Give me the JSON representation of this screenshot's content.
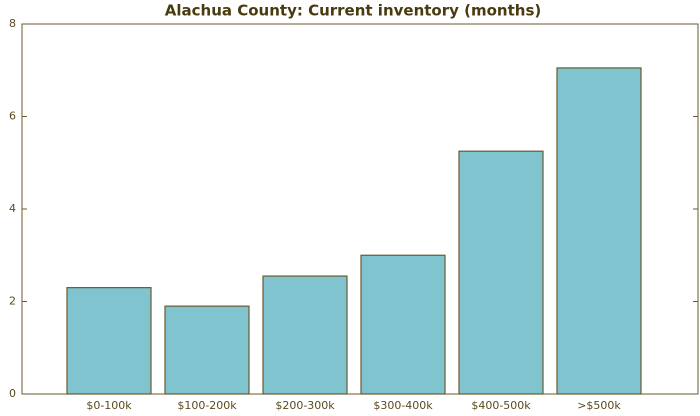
{
  "chart_data": {
    "type": "bar",
    "title": "Alachua County: Current inventory (months)",
    "categories": [
      "$0-100k",
      "$100-200k",
      "$200-300k",
      "$300-400k",
      "$400-500k",
      ">$500k"
    ],
    "values": [
      2.3,
      1.9,
      2.55,
      3.0,
      5.25,
      7.05
    ],
    "color": "#7fc4cf",
    "ylim": [
      0,
      8
    ],
    "yticks": [
      0,
      2,
      4,
      6,
      8
    ],
    "grid": false
  }
}
